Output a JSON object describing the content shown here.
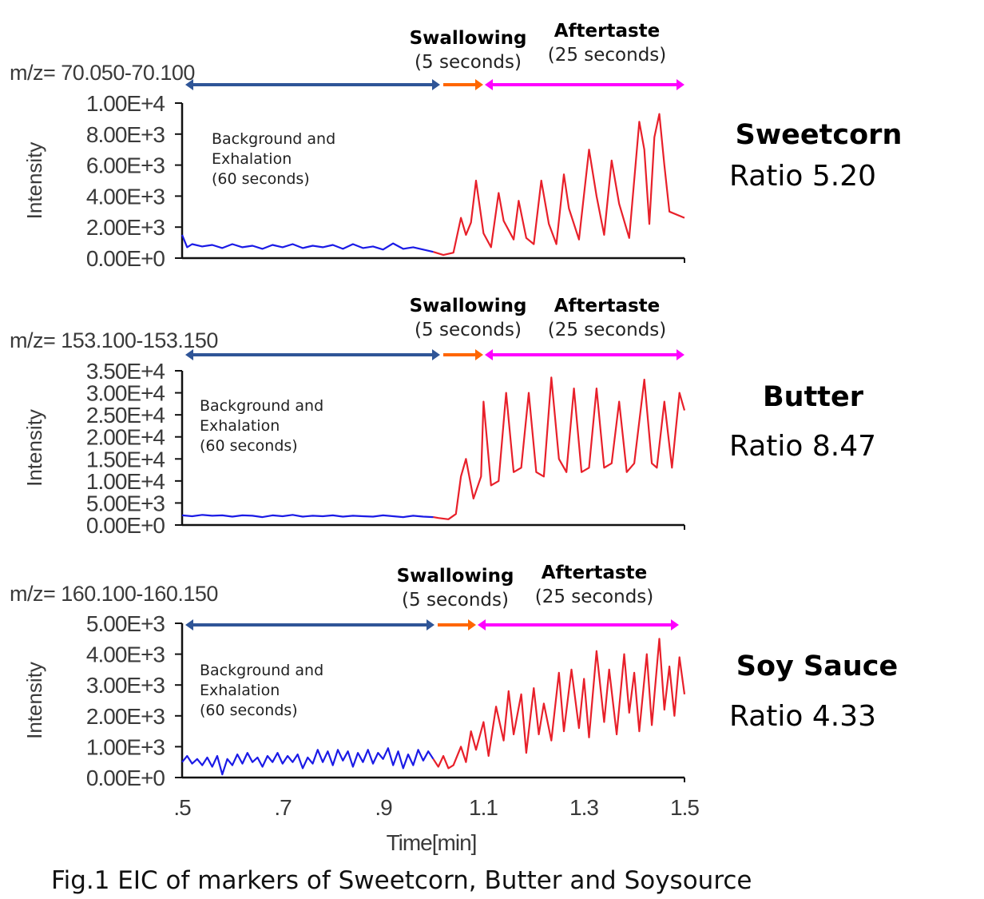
{
  "chart_data": {
    "type": "line",
    "title": "Fig.1 EIC of markers of Sweetcorn, Butter and Soysource",
    "xlabel": "Time[min]",
    "xlim": [
      0.5,
      1.5
    ],
    "xticks": [
      ".5",
      ".7",
      ".9",
      "1.1",
      "1.3",
      "1.5"
    ],
    "xtick_values": [
      0.5,
      0.7,
      0.9,
      1.1,
      1.3,
      1.5
    ],
    "colors": {
      "background": "#1a1ae6",
      "swallow_after": "#e8202a",
      "arrow_background": "#2f5597",
      "arrow_swallow": "#ff6600",
      "arrow_aftertaste": "#ff00ff"
    },
    "phases": {
      "swallowing": "Swallowing",
      "swallowing_dur": "(5 seconds)",
      "aftertaste": "Aftertaste",
      "aftertaste_dur": "(25 seconds)",
      "background": [
        "Background and",
        "Exhalation",
        "(60 seconds)"
      ],
      "background_range": [
        0.5,
        1.0
      ],
      "swallowing_range": [
        1.0,
        1.083
      ],
      "aftertaste_range": [
        1.083,
        1.5
      ]
    },
    "panels": [
      {
        "food": "Sweetcorn",
        "ratio": "Ratio 5.20",
        "mz": "m/z= 70.050-70.100",
        "ylabel": "Intensity",
        "ylim": [
          0,
          10000
        ],
        "yticks": [
          "1.00E+4",
          "8.00E+3",
          "6.00E+3",
          "4.00E+3",
          "2.00E+3",
          "0.00E+0"
        ],
        "ytick_values": [
          10000,
          8000,
          6000,
          4000,
          2000,
          0
        ],
        "background": [
          [
            0.5,
            1500
          ],
          [
            0.51,
            700
          ],
          [
            0.52,
            900
          ],
          [
            0.54,
            750
          ],
          [
            0.56,
            850
          ],
          [
            0.58,
            650
          ],
          [
            0.6,
            900
          ],
          [
            0.62,
            700
          ],
          [
            0.64,
            800
          ],
          [
            0.66,
            600
          ],
          [
            0.68,
            850
          ],
          [
            0.7,
            700
          ],
          [
            0.72,
            900
          ],
          [
            0.74,
            650
          ],
          [
            0.76,
            800
          ],
          [
            0.78,
            700
          ],
          [
            0.8,
            850
          ],
          [
            0.82,
            600
          ],
          [
            0.84,
            900
          ],
          [
            0.86,
            650
          ],
          [
            0.88,
            750
          ],
          [
            0.9,
            550
          ],
          [
            0.92,
            950
          ],
          [
            0.94,
            600
          ],
          [
            0.96,
            700
          ],
          [
            0.98,
            550
          ],
          [
            1.0,
            400
          ]
        ],
        "signal": [
          [
            1.0,
            400
          ],
          [
            1.02,
            200
          ],
          [
            1.04,
            350
          ],
          [
            1.055,
            2600
          ],
          [
            1.065,
            1500
          ],
          [
            1.075,
            2300
          ],
          [
            1.085,
            5000
          ],
          [
            1.1,
            1600
          ],
          [
            1.115,
            700
          ],
          [
            1.13,
            4200
          ],
          [
            1.14,
            2400
          ],
          [
            1.16,
            1200
          ],
          [
            1.17,
            3700
          ],
          [
            1.185,
            1300
          ],
          [
            1.2,
            900
          ],
          [
            1.215,
            5000
          ],
          [
            1.23,
            2200
          ],
          [
            1.245,
            900
          ],
          [
            1.26,
            5400
          ],
          [
            1.27,
            3200
          ],
          [
            1.29,
            1200
          ],
          [
            1.31,
            7000
          ],
          [
            1.325,
            4000
          ],
          [
            1.34,
            1500
          ],
          [
            1.355,
            6300
          ],
          [
            1.37,
            3500
          ],
          [
            1.39,
            1300
          ],
          [
            1.41,
            8800
          ],
          [
            1.42,
            7000
          ],
          [
            1.43,
            2200
          ],
          [
            1.44,
            7800
          ],
          [
            1.45,
            9300
          ],
          [
            1.46,
            6000
          ],
          [
            1.47,
            3000
          ],
          [
            1.5,
            2600
          ]
        ]
      },
      {
        "food": "Butter",
        "ratio": "Ratio 8.47",
        "mz": "m/z= 153.100-153.150",
        "ylabel": "Intensity",
        "ylim": [
          0,
          35000
        ],
        "yticks": [
          "3.50E+4",
          "3.00E+4",
          "2.50E+4",
          "2.00E+4",
          "1.50E+4",
          "1.00E+4",
          "5.00E+3",
          "0.00E+0"
        ],
        "ytick_values": [
          35000,
          30000,
          25000,
          20000,
          15000,
          10000,
          5000,
          0
        ],
        "background": [
          [
            0.5,
            2200
          ],
          [
            0.52,
            2000
          ],
          [
            0.54,
            2300
          ],
          [
            0.56,
            2100
          ],
          [
            0.58,
            2200
          ],
          [
            0.6,
            1900
          ],
          [
            0.62,
            2200
          ],
          [
            0.64,
            2100
          ],
          [
            0.66,
            1800
          ],
          [
            0.68,
            2200
          ],
          [
            0.7,
            2000
          ],
          [
            0.72,
            2300
          ],
          [
            0.74,
            1900
          ],
          [
            0.76,
            2100
          ],
          [
            0.78,
            2000
          ],
          [
            0.8,
            2200
          ],
          [
            0.82,
            1900
          ],
          [
            0.84,
            2100
          ],
          [
            0.86,
            2000
          ],
          [
            0.88,
            1900
          ],
          [
            0.9,
            2200
          ],
          [
            0.92,
            2000
          ],
          [
            0.94,
            1800
          ],
          [
            0.96,
            2100
          ],
          [
            0.98,
            1900
          ],
          [
            1.0,
            1800
          ]
        ],
        "signal": [
          [
            1.0,
            1800
          ],
          [
            1.01,
            1600
          ],
          [
            1.03,
            1300
          ],
          [
            1.045,
            2500
          ],
          [
            1.055,
            11000
          ],
          [
            1.065,
            15000
          ],
          [
            1.08,
            6000
          ],
          [
            1.095,
            11000
          ],
          [
            1.1,
            28000
          ],
          [
            1.115,
            9000
          ],
          [
            1.13,
            10000
          ],
          [
            1.145,
            30000
          ],
          [
            1.16,
            12000
          ],
          [
            1.175,
            13000
          ],
          [
            1.19,
            30000
          ],
          [
            1.205,
            12000
          ],
          [
            1.22,
            11000
          ],
          [
            1.235,
            33500
          ],
          [
            1.25,
            15000
          ],
          [
            1.265,
            12000
          ],
          [
            1.28,
            31000
          ],
          [
            1.295,
            12000
          ],
          [
            1.31,
            13000
          ],
          [
            1.325,
            31000
          ],
          [
            1.34,
            13000
          ],
          [
            1.355,
            14000
          ],
          [
            1.37,
            28000
          ],
          [
            1.385,
            12000
          ],
          [
            1.4,
            14000
          ],
          [
            1.42,
            33000
          ],
          [
            1.435,
            14000
          ],
          [
            1.445,
            13000
          ],
          [
            1.46,
            28000
          ],
          [
            1.475,
            13000
          ],
          [
            1.49,
            30000
          ],
          [
            1.5,
            26000
          ]
        ]
      },
      {
        "food": "Soy Sauce",
        "ratio": "Ratio 4.33",
        "mz": "m/z= 160.100-160.150",
        "ylabel": "Intensity",
        "ylim": [
          0,
          5000
        ],
        "yticks": [
          "5.00E+3",
          "4.00E+3",
          "3.00E+3",
          "2.00E+3",
          "1.00E+3",
          "0.00E+0"
        ],
        "ytick_values": [
          5000,
          4000,
          3000,
          2000,
          1000,
          0
        ],
        "background": [
          [
            0.5,
            500
          ],
          [
            0.51,
            700
          ],
          [
            0.52,
            450
          ],
          [
            0.53,
            600
          ],
          [
            0.54,
            400
          ],
          [
            0.55,
            650
          ],
          [
            0.56,
            350
          ],
          [
            0.57,
            700
          ],
          [
            0.58,
            100
          ],
          [
            0.59,
            600
          ],
          [
            0.6,
            400
          ],
          [
            0.61,
            750
          ],
          [
            0.62,
            450
          ],
          [
            0.63,
            800
          ],
          [
            0.64,
            500
          ],
          [
            0.65,
            650
          ],
          [
            0.66,
            350
          ],
          [
            0.67,
            700
          ],
          [
            0.68,
            500
          ],
          [
            0.69,
            800
          ],
          [
            0.7,
            450
          ],
          [
            0.71,
            700
          ],
          [
            0.72,
            500
          ],
          [
            0.73,
            750
          ],
          [
            0.74,
            300
          ],
          [
            0.75,
            650
          ],
          [
            0.76,
            450
          ],
          [
            0.77,
            900
          ],
          [
            0.78,
            500
          ],
          [
            0.79,
            850
          ],
          [
            0.8,
            400
          ],
          [
            0.81,
            900
          ],
          [
            0.82,
            550
          ],
          [
            0.83,
            850
          ],
          [
            0.84,
            350
          ],
          [
            0.85,
            800
          ],
          [
            0.86,
            500
          ],
          [
            0.87,
            900
          ],
          [
            0.88,
            450
          ],
          [
            0.89,
            800
          ],
          [
            0.9,
            600
          ],
          [
            0.91,
            950
          ],
          [
            0.92,
            400
          ],
          [
            0.93,
            850
          ],
          [
            0.94,
            300
          ],
          [
            0.95,
            750
          ],
          [
            0.96,
            400
          ],
          [
            0.97,
            900
          ],
          [
            0.98,
            550
          ],
          [
            0.99,
            850
          ],
          [
            1.0,
            600
          ]
        ],
        "signal": [
          [
            1.0,
            600
          ],
          [
            1.01,
            350
          ],
          [
            1.02,
            700
          ],
          [
            1.03,
            300
          ],
          [
            1.04,
            400
          ],
          [
            1.055,
            1000
          ],
          [
            1.065,
            500
          ],
          [
            1.075,
            1500
          ],
          [
            1.085,
            900
          ],
          [
            1.1,
            1800
          ],
          [
            1.11,
            700
          ],
          [
            1.125,
            2300
          ],
          [
            1.14,
            1200
          ],
          [
            1.15,
            2800
          ],
          [
            1.16,
            1400
          ],
          [
            1.175,
            2700
          ],
          [
            1.185,
            800
          ],
          [
            1.2,
            2900
          ],
          [
            1.21,
            1400
          ],
          [
            1.22,
            2400
          ],
          [
            1.235,
            1200
          ],
          [
            1.25,
            3400
          ],
          [
            1.26,
            1500
          ],
          [
            1.275,
            3500
          ],
          [
            1.29,
            1600
          ],
          [
            1.3,
            3200
          ],
          [
            1.31,
            1300
          ],
          [
            1.325,
            4100
          ],
          [
            1.34,
            1800
          ],
          [
            1.35,
            3500
          ],
          [
            1.365,
            1400
          ],
          [
            1.38,
            4000
          ],
          [
            1.39,
            2100
          ],
          [
            1.4,
            3400
          ],
          [
            1.41,
            1500
          ],
          [
            1.425,
            4000
          ],
          [
            1.435,
            1700
          ],
          [
            1.45,
            4500
          ],
          [
            1.46,
            2200
          ],
          [
            1.47,
            3600
          ],
          [
            1.48,
            2000
          ],
          [
            1.49,
            3900
          ],
          [
            1.5,
            2700
          ]
        ]
      }
    ]
  }
}
